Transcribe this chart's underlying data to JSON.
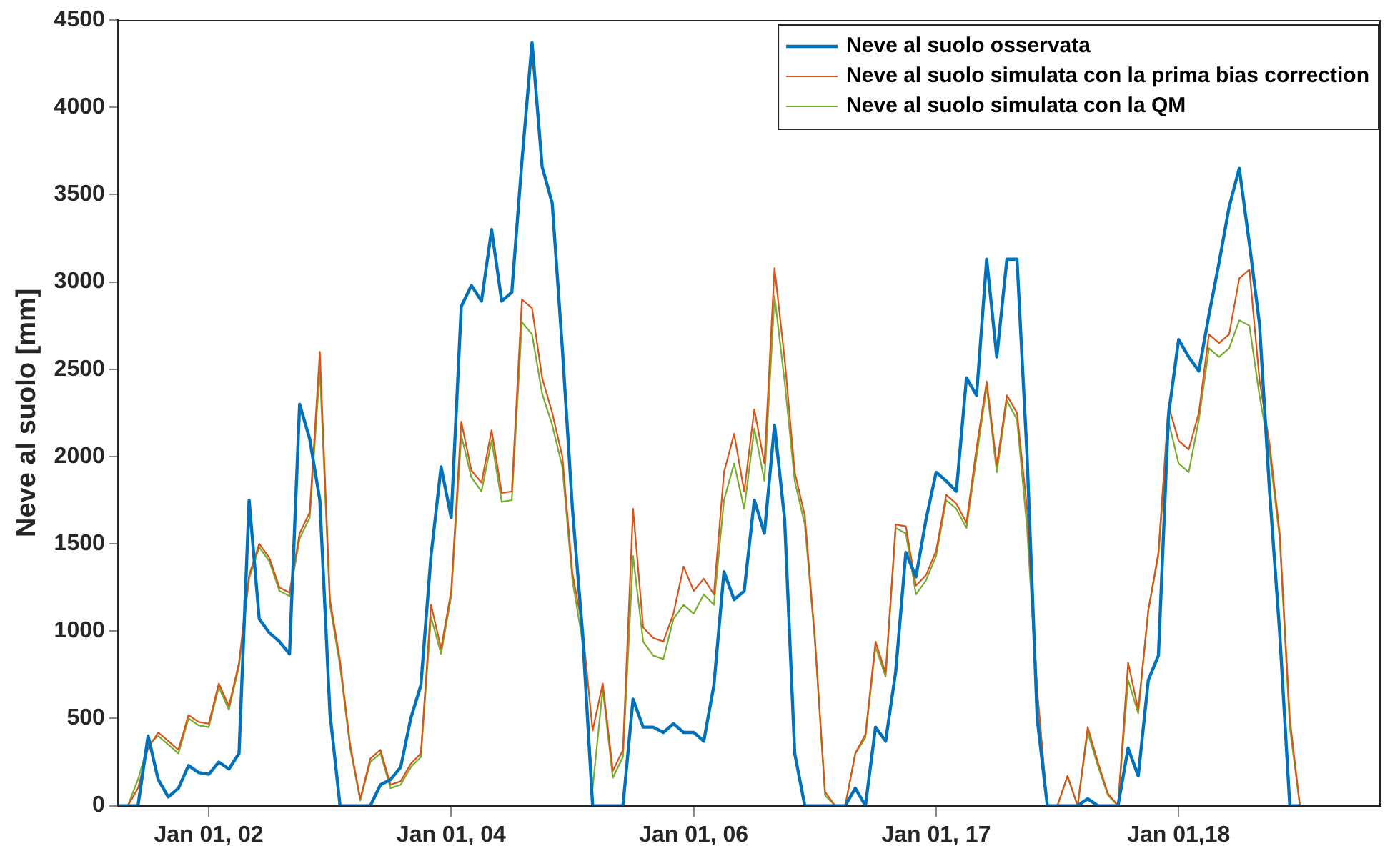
{
  "chart_data": {
    "type": "line",
    "ylabel": "Neve al suolo [mm]",
    "categories": [
      null,
      null,
      null,
      null,
      null,
      null,
      null,
      null,
      null,
      "Jan 01, 02",
      null,
      null,
      null,
      null,
      null,
      null,
      null,
      null,
      null,
      null,
      null,
      null,
      null,
      null,
      null,
      null,
      null,
      null,
      null,
      null,
      null,
      null,
      null,
      "Jan 01, 04",
      null,
      null,
      null,
      null,
      null,
      null,
      null,
      null,
      null,
      null,
      null,
      null,
      null,
      null,
      null,
      null,
      null,
      null,
      null,
      null,
      null,
      null,
      null,
      "Jan 01, 06",
      null,
      null,
      null,
      null,
      null,
      null,
      null,
      null,
      null,
      null,
      null,
      null,
      null,
      null,
      null,
      null,
      null,
      null,
      null,
      null,
      null,
      null,
      null,
      "Jan 01, 17",
      null,
      null,
      null,
      null,
      null,
      null,
      null,
      null,
      null,
      null,
      null,
      null,
      null,
      null,
      null,
      null,
      null,
      null,
      null,
      null,
      null,
      null,
      null,
      "Jan 01,18",
      null,
      null,
      null,
      null,
      null,
      null,
      null,
      null,
      null,
      null,
      null,
      null,
      null,
      null,
      null,
      null,
      null,
      null,
      null,
      null
    ],
    "series": [
      {
        "name": "Neve al suolo osservata",
        "color": "#0072bd",
        "values": [
          0,
          0,
          0,
          400,
          150,
          50,
          100,
          230,
          190,
          180,
          250,
          210,
          300,
          1750,
          1070,
          990,
          940,
          870,
          2300,
          2100,
          1750,
          530,
          0,
          0,
          0,
          0,
          120,
          150,
          220,
          500,
          690,
          1430,
          1940,
          1650,
          2860,
          2980,
          2890,
          3300,
          2890,
          2940,
          3690,
          4370,
          3660,
          3450,
          2620,
          1700,
          990,
          0,
          0,
          0,
          0,
          610,
          450,
          450,
          420,
          470,
          420,
          420,
          370,
          690,
          1340,
          1180,
          1230,
          1750,
          1560,
          2180,
          1640,
          300,
          0,
          0,
          0,
          0,
          0,
          100,
          0,
          450,
          370,
          770,
          1450,
          1310,
          1640,
          1910,
          1860,
          1800,
          2450,
          2350,
          3130,
          2570,
          3130,
          3130,
          2000,
          500,
          0,
          0,
          0,
          0,
          40,
          0,
          0,
          0,
          330,
          170,
          720,
          860,
          2240,
          2670,
          2570,
          2490,
          2810,
          3110,
          3430,
          3650,
          3220,
          2760,
          1800,
          990,
          0,
          0,
          null,
          null,
          null,
          null,
          null,
          null,
          null,
          null
        ]
      },
      {
        "name": "Neve al suolo simulata con la prima bias correction",
        "color": "#d95319",
        "values": [
          0,
          0,
          100,
          330,
          420,
          370,
          320,
          520,
          480,
          470,
          700,
          570,
          820,
          1320,
          1500,
          1420,
          1250,
          1220,
          1560,
          1680,
          2600,
          1180,
          830,
          350,
          40,
          270,
          320,
          120,
          140,
          240,
          300,
          1150,
          900,
          1230,
          2200,
          1920,
          1850,
          2150,
          1790,
          1800,
          2900,
          2850,
          2450,
          2250,
          2000,
          1330,
          1020,
          430,
          700,
          200,
          320,
          1700,
          1020,
          960,
          940,
          1100,
          1370,
          1230,
          1300,
          1210,
          1910,
          2130,
          1800,
          2270,
          1960,
          3080,
          2560,
          1910,
          1660,
          960,
          80,
          0,
          0,
          300,
          410,
          940,
          760,
          1610,
          1600,
          1260,
          1320,
          1460,
          1780,
          1730,
          1620,
          2050,
          2430,
          1950,
          2350,
          2250,
          1700,
          660,
          0,
          0,
          170,
          0,
          450,
          250,
          70,
          0,
          820,
          550,
          1120,
          1450,
          2290,
          2090,
          2040,
          2250,
          2700,
          2650,
          2700,
          3020,
          3070,
          2440,
          2070,
          1560,
          500,
          0,
          null,
          null,
          null,
          null,
          null,
          null,
          null,
          null
        ]
      },
      {
        "name": "Neve al suolo simulata con la QM",
        "color": "#77ac30",
        "values": [
          0,
          0,
          150,
          350,
          400,
          350,
          300,
          500,
          460,
          450,
          680,
          550,
          800,
          1300,
          1480,
          1400,
          1230,
          1200,
          1530,
          1650,
          2500,
          1150,
          800,
          330,
          30,
          250,
          300,
          100,
          120,
          220,
          280,
          1080,
          870,
          1200,
          2120,
          1880,
          1800,
          2090,
          1740,
          1750,
          2770,
          2700,
          2360,
          2180,
          1940,
          1290,
          940,
          100,
          670,
          160,
          280,
          1430,
          940,
          860,
          840,
          1070,
          1150,
          1100,
          1210,
          1150,
          1750,
          1960,
          1700,
          2160,
          1860,
          2920,
          2430,
          1860,
          1610,
          940,
          60,
          0,
          0,
          300,
          390,
          910,
          740,
          1590,
          1560,
          1210,
          1290,
          1430,
          1750,
          1700,
          1590,
          2000,
          2400,
          1910,
          2320,
          2210,
          1590,
          640,
          0,
          0,
          170,
          0,
          420,
          230,
          60,
          0,
          720,
          530,
          1120,
          1430,
          2200,
          1960,
          1910,
          2210,
          2620,
          2570,
          2620,
          2780,
          2750,
          2350,
          2020,
          1530,
          450,
          0,
          null,
          null,
          null,
          null,
          null,
          null,
          null,
          null
        ]
      }
    ],
    "ylim": [
      0,
      4500
    ],
    "yticks": [
      0,
      500,
      1000,
      1500,
      2000,
      2500,
      3000,
      3500,
      4000,
      4500
    ],
    "grid": false,
    "legend": "top right",
    "marker": "none",
    "line_style": "solid"
  }
}
